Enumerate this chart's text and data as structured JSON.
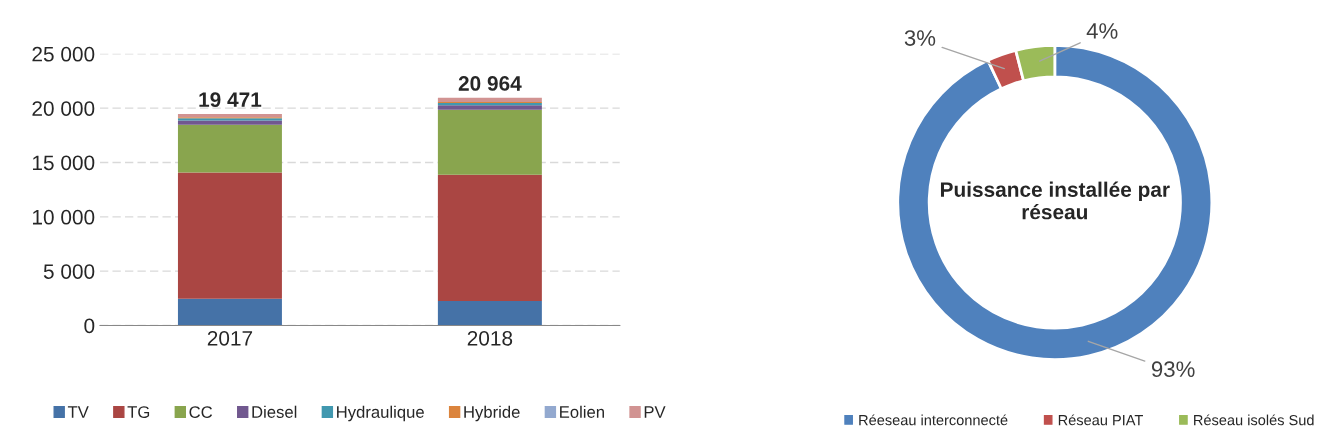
{
  "chart_data": [
    {
      "type": "bar",
      "stacked": true,
      "categories": [
        "2017",
        "2018"
      ],
      "ylim": [
        0,
        25000
      ],
      "yticks": [
        {
          "value": 0,
          "label": "0"
        },
        {
          "value": 5000,
          "label": "5 000"
        },
        {
          "value": 10000,
          "label": "10 000"
        },
        {
          "value": 15000,
          "label": "15 000"
        },
        {
          "value": 20000,
          "label": "20 000"
        },
        {
          "value": 25000,
          "label": "25 000"
        }
      ],
      "grid": "y",
      "legend": "bottom",
      "totals": [
        "19 471",
        "20 964"
      ],
      "series": [
        {
          "name": "TV",
          "color": "#4572a7",
          "values": [
            2471,
            2264
          ]
        },
        {
          "name": "TG",
          "color": "#aa4643",
          "values": [
            11600,
            11600
          ]
        },
        {
          "name": "CC",
          "color": "#89a54e",
          "values": [
            4400,
            6000
          ]
        },
        {
          "name": "Diesel",
          "color": "#71588f",
          "values": [
            400,
            400
          ]
        },
        {
          "name": "Hydraulique",
          "color": "#4198af",
          "values": [
            200,
            200
          ]
        },
        {
          "name": "Hybride",
          "color": "#db843d",
          "values": [
            100,
            100
          ]
        },
        {
          "name": "Eolien",
          "color": "#93a9cf",
          "values": [
            0,
            0
          ]
        },
        {
          "name": "PV",
          "color": "#d19392",
          "values": [
            300,
            400
          ]
        }
      ]
    },
    {
      "type": "donut",
      "title": "Puissance installée par réseau",
      "legend": "bottom",
      "categories": [
        "Réeseau interconnecté",
        "Réseau PIAT",
        "Réseau isolés Sud"
      ],
      "values": [
        93,
        3,
        4
      ],
      "colors": [
        "#4f81bd",
        "#c0504d",
        "#9bbb59"
      ],
      "value_labels": [
        "93%",
        "3%",
        "4%"
      ]
    }
  ]
}
